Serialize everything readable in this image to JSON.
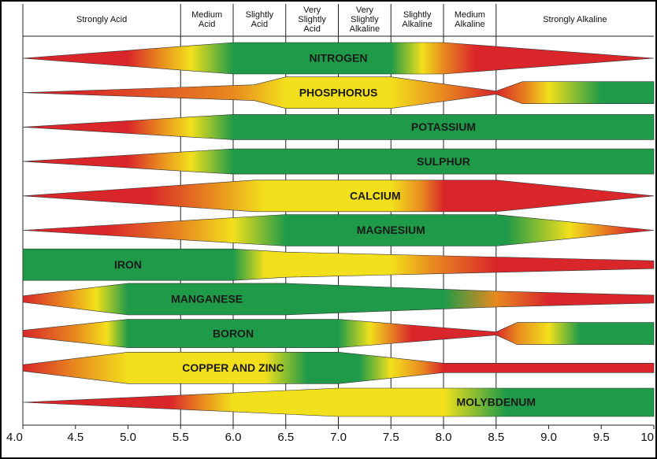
{
  "chart_data": {
    "type": "availability",
    "xlim": [
      4,
      10
    ],
    "xticks": [
      {
        "value": 4,
        "label": "4.0"
      },
      4.5,
      {
        "value": 5,
        "label": "5.0"
      },
      5.5,
      {
        "value": 6,
        "label": "6.0"
      },
      6.5,
      {
        "value": 7,
        "label": "7.0"
      },
      7.5,
      {
        "value": 8,
        "label": "8.0"
      },
      8.5,
      {
        "value": 9,
        "label": "9.0"
      },
      9.5,
      10
    ],
    "header": [
      {
        "label": [
          "Strongly Acid"
        ],
        "from": 4,
        "to": 5.5
      },
      {
        "label": [
          "Medium",
          "Acid"
        ],
        "from": 5.5,
        "to": 6
      },
      {
        "label": [
          "Slightly",
          "Acid"
        ],
        "from": 6,
        "to": 6.5
      },
      {
        "label": [
          "Very",
          "Slightly",
          "Acid"
        ],
        "from": 6.5,
        "to": 7
      },
      {
        "label": [
          "Very",
          "Slightly",
          "Alkaline"
        ],
        "from": 7,
        "to": 7.5
      },
      {
        "label": [
          "Slightly",
          "Alkaline"
        ],
        "from": 7.5,
        "to": 8
      },
      {
        "label": [
          "Medium",
          "Alkaline"
        ],
        "from": 8,
        "to": 8.5
      },
      {
        "label": [
          "Strongly Alkaline"
        ],
        "from": 8.5,
        "to": 10
      }
    ],
    "series": [
      {
        "name": "NITROGEN",
        "profile": [
          [
            4,
            0
          ],
          [
            6,
            1
          ],
          [
            8,
            1
          ],
          [
            10,
            0
          ]
        ],
        "colors": [
          [
            5,
            "#d9262a"
          ],
          [
            5.3,
            "#e8891f"
          ],
          [
            5.6,
            "#f2e01c"
          ],
          [
            6,
            "#1f9a48"
          ],
          [
            7.5,
            "#1f9a48"
          ],
          [
            7.8,
            "#f2e01c"
          ],
          [
            8,
            "#e8891f"
          ],
          [
            8.3,
            "#d9262a"
          ]
        ]
      },
      {
        "name": "PHOSPHORUS",
        "profile": [
          [
            4,
            0
          ],
          [
            6.2,
            0.5
          ],
          [
            6.5,
            1
          ],
          [
            7.5,
            1
          ],
          [
            8.5,
            0.1
          ],
          [
            8.75,
            0.7
          ],
          [
            10,
            0.7
          ]
        ],
        "colors": [
          [
            4.5,
            "#d9262a"
          ],
          [
            6,
            "#e8891f"
          ],
          [
            6.5,
            "#f2e01c"
          ],
          [
            7.5,
            "#f2e01c"
          ],
          [
            8,
            "#e8891f"
          ],
          [
            8.5,
            "#d9262a"
          ],
          [
            8.8,
            "#e8891f"
          ],
          [
            9,
            "#f2e01c"
          ],
          [
            9.5,
            "#1f9a48"
          ]
        ]
      },
      {
        "name": "POTASSIUM",
        "profile": [
          [
            4,
            0
          ],
          [
            6,
            0.8
          ],
          [
            10,
            0.8
          ]
        ],
        "colors": [
          [
            5,
            "#d9262a"
          ],
          [
            5.3,
            "#e8891f"
          ],
          [
            5.6,
            "#f2e01c"
          ],
          [
            6,
            "#1f9a48"
          ]
        ]
      },
      {
        "name": "SULPHUR",
        "profile": [
          [
            4,
            0
          ],
          [
            6,
            0.8
          ],
          [
            10,
            0.8
          ]
        ],
        "colors": [
          [
            5,
            "#d9262a"
          ],
          [
            5.3,
            "#e8891f"
          ],
          [
            5.6,
            "#f2e01c"
          ],
          [
            6,
            "#1f9a48"
          ]
        ]
      },
      {
        "name": "CALCIUM",
        "profile": [
          [
            4,
            0
          ],
          [
            6.2,
            1
          ],
          [
            8.5,
            1
          ],
          [
            10,
            0
          ]
        ],
        "colors": [
          [
            5.2,
            "#d9262a"
          ],
          [
            5.8,
            "#e8891f"
          ],
          [
            6.3,
            "#f2e01c"
          ],
          [
            7.5,
            "#f2e01c"
          ],
          [
            7.8,
            "#e8891f"
          ],
          [
            8,
            "#d9262a"
          ]
        ]
      },
      {
        "name": "MAGNESIUM",
        "profile": [
          [
            4,
            0
          ],
          [
            6.5,
            1
          ],
          [
            8.5,
            1
          ],
          [
            10,
            0
          ]
        ],
        "colors": [
          [
            4.8,
            "#d9262a"
          ],
          [
            5.5,
            "#e8891f"
          ],
          [
            6,
            "#f2e01c"
          ],
          [
            6.5,
            "#1f9a48"
          ],
          [
            8.6,
            "#1f9a48"
          ],
          [
            9.2,
            "#f2e01c"
          ],
          [
            9.5,
            "#e8891f"
          ],
          [
            9.8,
            "#d9262a"
          ]
        ]
      },
      {
        "name": "IRON",
        "profile": [
          [
            4,
            1
          ],
          [
            6,
            1
          ],
          [
            6.5,
            0.8
          ],
          [
            10,
            0.25
          ]
        ],
        "colors": [
          [
            4,
            "#1f9a48"
          ],
          [
            6,
            "#1f9a48"
          ],
          [
            6.3,
            "#f2e01c"
          ],
          [
            7.5,
            "#f2e01c"
          ],
          [
            7.9,
            "#e8891f"
          ],
          [
            8.5,
            "#d9262a"
          ]
        ]
      },
      {
        "name": "MANGANESE",
        "profile": [
          [
            4,
            0.2
          ],
          [
            5,
            1
          ],
          [
            6.5,
            1
          ],
          [
            8.5,
            0.5
          ],
          [
            10,
            0.25
          ]
        ],
        "colors": [
          [
            4,
            "#d9262a"
          ],
          [
            4.4,
            "#e8891f"
          ],
          [
            4.7,
            "#f2e01c"
          ],
          [
            5,
            "#1f9a48"
          ],
          [
            8,
            "#1f9a48"
          ],
          [
            8.5,
            "#e8891f"
          ],
          [
            9,
            "#d9262a"
          ]
        ]
      },
      {
        "name": "BORON",
        "profile": [
          [
            4,
            0.2
          ],
          [
            5,
            0.9
          ],
          [
            7,
            0.9
          ],
          [
            8.5,
            0.1
          ],
          [
            8.7,
            0.7
          ],
          [
            10,
            0.7
          ]
        ],
        "colors": [
          [
            4,
            "#d9262a"
          ],
          [
            4.5,
            "#e8891f"
          ],
          [
            4.8,
            "#f2e01c"
          ],
          [
            5,
            "#1f9a48"
          ],
          [
            7,
            "#1f9a48"
          ],
          [
            7.3,
            "#f2e01c"
          ],
          [
            7.7,
            "#d9262a"
          ],
          [
            8.5,
            "#d9262a"
          ],
          [
            8.7,
            "#e8891f"
          ],
          [
            9,
            "#f2e01c"
          ],
          [
            9.3,
            "#1f9a48"
          ]
        ]
      },
      {
        "name": "COPPER AND ZINC",
        "profile": [
          [
            4,
            0.2
          ],
          [
            5,
            1
          ],
          [
            7,
            1
          ],
          [
            8,
            0.3
          ],
          [
            10,
            0.3
          ]
        ],
        "colors": [
          [
            4,
            "#d9262a"
          ],
          [
            4.5,
            "#e8891f"
          ],
          [
            5,
            "#f2e01c"
          ],
          [
            6.3,
            "#f2e01c"
          ],
          [
            6.7,
            "#1f9a48"
          ],
          [
            7.2,
            "#1f9a48"
          ],
          [
            7.5,
            "#f2e01c"
          ],
          [
            7.8,
            "#e8891f"
          ],
          [
            8,
            "#d9262a"
          ]
        ]
      },
      {
        "name": "MOLYBDENUM",
        "profile": [
          [
            4,
            0
          ],
          [
            7,
            0.9
          ],
          [
            10,
            0.9
          ]
        ],
        "colors": [
          [
            5.4,
            "#d9262a"
          ],
          [
            5.7,
            "#e8891f"
          ],
          [
            6,
            "#f2e01c"
          ],
          [
            8,
            "#f2e01c"
          ],
          [
            8.6,
            "#1f9a48"
          ]
        ]
      }
    ]
  }
}
